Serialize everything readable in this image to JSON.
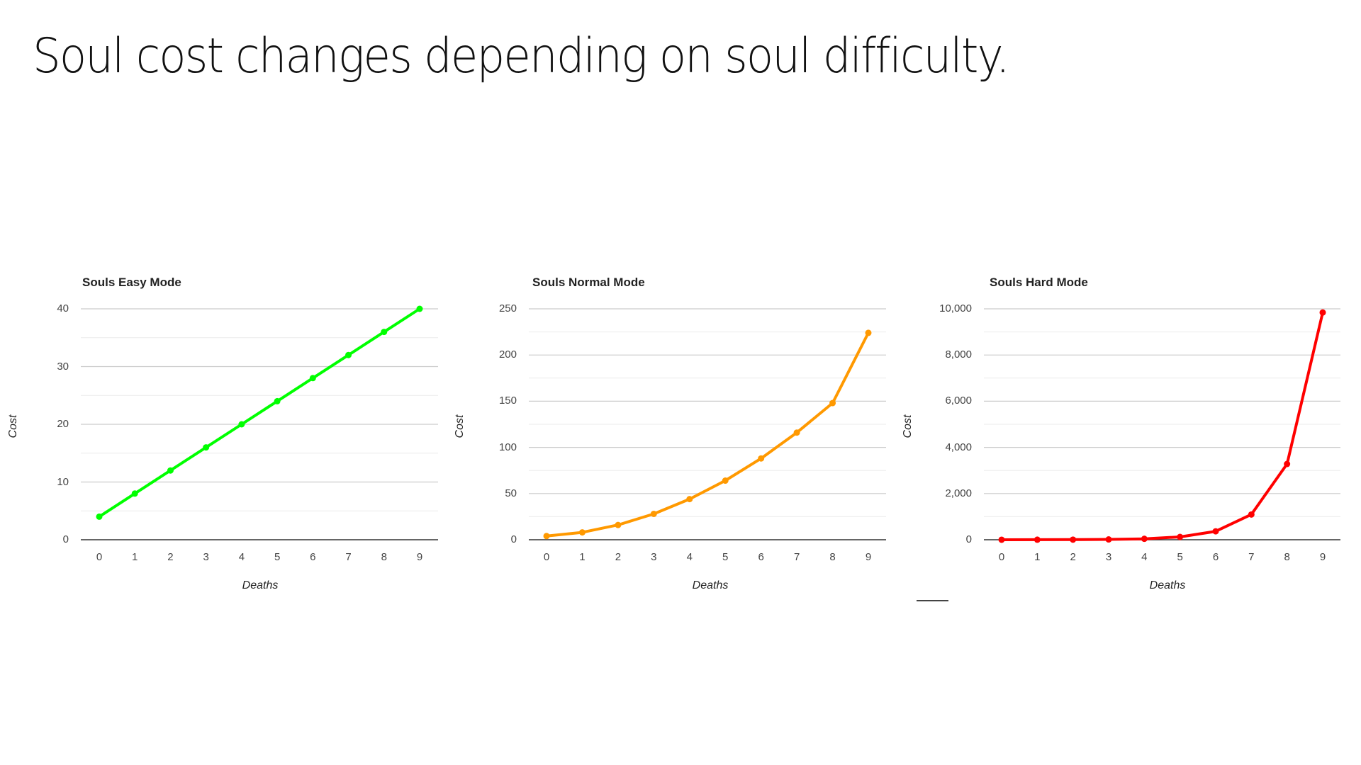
{
  "slide": {
    "title": "Soul cost changes depending on soul difficulty."
  },
  "chart_data": [
    {
      "type": "line",
      "title": "Souls Easy Mode",
      "xlabel": "Deaths",
      "ylabel": "Cost",
      "x": [
        0,
        1,
        2,
        3,
        4,
        5,
        6,
        7,
        8,
        9
      ],
      "series": [
        {
          "name": "Cost",
          "values": [
            4,
            8,
            12,
            16,
            20,
            24,
            28,
            32,
            36,
            40
          ],
          "color": "#00ff00"
        }
      ],
      "ylim": [
        0,
        40
      ],
      "yticks": [
        0,
        10,
        20,
        30,
        40
      ],
      "ytick_labels": [
        "0",
        "10",
        "20",
        "30",
        "40"
      ],
      "grid": true,
      "minor_grid": true,
      "legend": "none"
    },
    {
      "type": "line",
      "title": "Souls Normal Mode",
      "xlabel": "Deaths",
      "ylabel": "Cost",
      "x": [
        0,
        1,
        2,
        3,
        4,
        5,
        6,
        7,
        8,
        9
      ],
      "series": [
        {
          "name": "Cost",
          "values": [
            4,
            8,
            16,
            28,
            44,
            64,
            88,
            116,
            148,
            224
          ],
          "color": "#ff9900"
        }
      ],
      "ylim": [
        0,
        250
      ],
      "yticks": [
        0,
        50,
        100,
        150,
        200,
        250
      ],
      "ytick_labels": [
        "0",
        "50",
        "100",
        "150",
        "200",
        "250"
      ],
      "grid": true,
      "minor_grid": true,
      "legend": "none"
    },
    {
      "type": "line",
      "title": "Souls Hard Mode",
      "xlabel": "Deaths",
      "ylabel": "Cost",
      "x": [
        0,
        1,
        2,
        3,
        4,
        5,
        6,
        7,
        8,
        9
      ],
      "series": [
        {
          "name": "Cost",
          "values": [
            1,
            2,
            5,
            14,
            41,
            122,
            365,
            1094,
            3281,
            9842
          ],
          "color": "#ff0000"
        }
      ],
      "ylim": [
        0,
        10000
      ],
      "yticks": [
        0,
        2000,
        4000,
        6000,
        8000,
        10000
      ],
      "ytick_labels": [
        "0",
        "2,000",
        "4,000",
        "6,000",
        "8,000",
        "10,000"
      ],
      "grid": true,
      "minor_grid": true,
      "legend": "none"
    }
  ]
}
